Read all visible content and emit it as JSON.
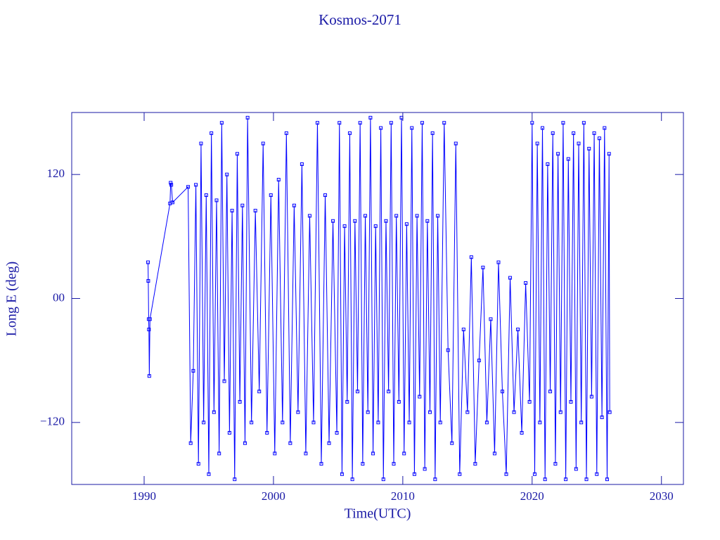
{
  "chart_data": {
    "type": "line",
    "title": "Kosmos-2071",
    "x_label": "Time(UTC)",
    "y_label": "Long E (deg)",
    "xlim": [
      1984.4,
      2031.7
    ],
    "xticks": [
      1990,
      2000,
      2010,
      2020,
      2030
    ],
    "ylim": [
      -180,
      180
    ],
    "yticks": [
      {
        "value": -120,
        "label": "−120"
      },
      {
        "value": 0,
        "label": "00"
      },
      120
    ],
    "grid": false,
    "markers": "square",
    "x": [
      1990.3,
      1990.32,
      1990.35,
      1990.37,
      1990.4,
      1990.45,
      1992.0,
      1992.05,
      1992.1,
      1992.2,
      1993.4,
      1993.6,
      1993.8,
      1994.0,
      1994.2,
      1994.4,
      1994.6,
      1994.8,
      1995.0,
      1995.2,
      1995.4,
      1995.6,
      1995.8,
      1996.0,
      1996.2,
      1996.4,
      1996.6,
      1996.8,
      1997.0,
      1997.2,
      1997.4,
      1997.6,
      1997.8,
      1998.0,
      1998.3,
      1998.6,
      1998.9,
      1999.2,
      1999.5,
      1999.8,
      2000.1,
      2000.4,
      2000.7,
      2001.0,
      2001.3,
      2001.6,
      2001.9,
      2002.2,
      2002.5,
      2002.8,
      2003.1,
      2003.4,
      2003.7,
      2004.0,
      2004.3,
      2004.6,
      2004.9,
      2005.1,
      2005.3,
      2005.5,
      2005.7,
      2005.9,
      2006.1,
      2006.3,
      2006.5,
      2006.7,
      2006.9,
      2007.1,
      2007.3,
      2007.5,
      2007.7,
      2007.9,
      2008.1,
      2008.3,
      2008.5,
      2008.7,
      2008.9,
      2009.1,
      2009.3,
      2009.5,
      2009.7,
      2009.9,
      2010.1,
      2010.3,
      2010.5,
      2010.7,
      2010.9,
      2011.1,
      2011.3,
      2011.5,
      2011.7,
      2011.9,
      2012.1,
      2012.3,
      2012.5,
      2012.7,
      2012.9,
      2013.2,
      2013.5,
      2013.8,
      2014.1,
      2014.4,
      2014.7,
      2015.0,
      2015.3,
      2015.6,
      2015.9,
      2016.2,
      2016.5,
      2016.8,
      2017.1,
      2017.4,
      2017.7,
      2018.0,
      2018.3,
      2018.6,
      2018.9,
      2019.2,
      2019.5,
      2019.8,
      2020.0,
      2020.2,
      2020.4,
      2020.6,
      2020.8,
      2021.0,
      2021.2,
      2021.4,
      2021.6,
      2021.8,
      2022.0,
      2022.2,
      2022.4,
      2022.6,
      2022.8,
      2023.0,
      2023.2,
      2023.4,
      2023.6,
      2023.8,
      2024.0,
      2024.2,
      2024.4,
      2024.6,
      2024.8,
      2025.0,
      2025.2,
      2025.4,
      2025.6,
      2025.8,
      2025.95,
      2026.0
    ],
    "series": [
      {
        "color": "#0000ff",
        "values": [
          35,
          17,
          -20,
          -30,
          -75,
          -20,
          92,
          112,
          110,
          93,
          108,
          -140,
          -70,
          110,
          -160,
          150,
          -120,
          100,
          -170,
          160,
          -110,
          95,
          -150,
          170,
          -80,
          120,
          -130,
          85,
          -175,
          140,
          -100,
          90,
          -140,
          175,
          -120,
          85,
          -90,
          150,
          -130,
          100,
          -150,
          115,
          -120,
          160,
          -140,
          90,
          -110,
          130,
          -150,
          80,
          -120,
          170,
          -160,
          100,
          -140,
          75,
          -130,
          170,
          -170,
          70,
          -100,
          160,
          -175,
          75,
          -90,
          170,
          -160,
          80,
          -110,
          175,
          -150,
          70,
          -120,
          165,
          -175,
          75,
          -90,
          170,
          -160,
          80,
          -100,
          175,
          -150,
          72,
          -120,
          165,
          -170,
          80,
          -95,
          170,
          -165,
          75,
          -110,
          160,
          -175,
          80,
          -120,
          170,
          -50,
          -140,
          150,
          -170,
          -30,
          -110,
          40,
          -160,
          -60,
          30,
          -120,
          -20,
          -150,
          35,
          -90,
          -170,
          20,
          -110,
          -30,
          -130,
          15,
          -100,
          170,
          -170,
          150,
          -120,
          165,
          -175,
          130,
          -90,
          160,
          -160,
          140,
          -110,
          170,
          -175,
          135,
          -100,
          160,
          -165,
          150,
          -120,
          170,
          -175,
          145,
          -95,
          160,
          -170,
          155,
          -115,
          165,
          -175,
          140,
          -110
        ]
      }
    ]
  }
}
